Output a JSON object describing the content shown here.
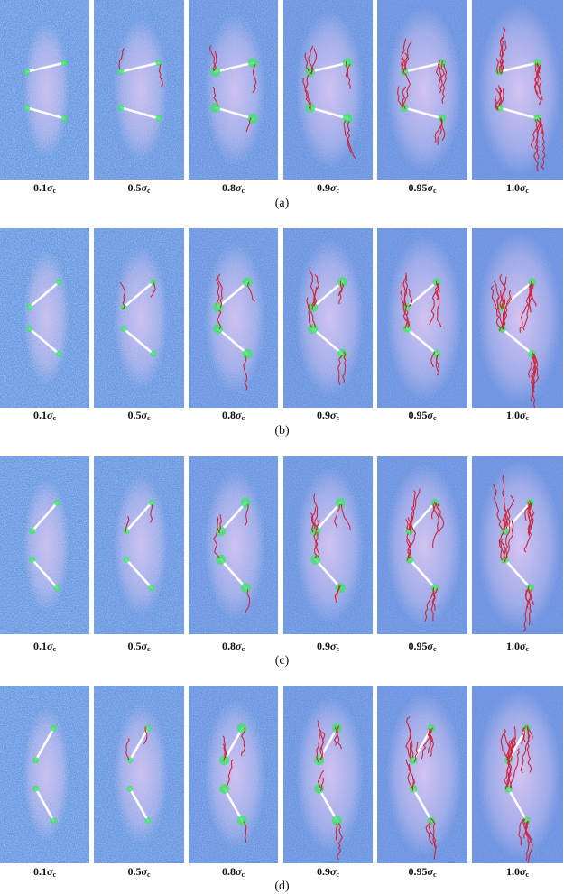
{
  "figure": {
    "stress_levels": [
      {
        "coef": "0.1",
        "sym": "σ",
        "sub": "c"
      },
      {
        "coef": "0.5",
        "sym": "σ",
        "sub": "c"
      },
      {
        "coef": "0.8",
        "sym": "σ",
        "sub": "c"
      },
      {
        "coef": "0.9",
        "sym": "σ",
        "sub": "c"
      },
      {
        "coef": "0.95",
        "sym": "σ",
        "sub": "c"
      },
      {
        "coef": "1.0",
        "sym": "σ",
        "sub": "c"
      }
    ],
    "rows": [
      {
        "caption": "(a)",
        "flaw_config": "parallel-offset",
        "labels": [
          "0.1σc",
          "0.5σc",
          "0.8σc",
          "0.9σc",
          "0.95σc",
          "1.0σc"
        ]
      },
      {
        "caption": "(b)",
        "flaw_config": "V-shaped-shallow",
        "labels": [
          "0.1σc",
          "0.5σc",
          "0.8σc",
          "0.9σc",
          "0.95σc",
          "1.0σc"
        ]
      },
      {
        "caption": "(c)",
        "flaw_config": "V-shaped-medium",
        "labels": [
          "0.1σc",
          "0.5σc",
          "0.8σc",
          "0.9σc",
          "0.95σc",
          "1.0σc"
        ]
      },
      {
        "caption": "(d)",
        "flaw_config": "V-shaped-steep",
        "labels": [
          "0.1σc",
          "0.5σc",
          "0.8σc",
          "0.9σc",
          "0.95σc",
          "1.0σc"
        ]
      }
    ],
    "colors": {
      "matrix_blue": "#6f8fe0",
      "matrix_cyan": "#4fc9e8",
      "stress_zone_lilac": "#d9c6f2",
      "flaw_white": "#ffffff",
      "crack_red": "#d0243a",
      "tip_green": "#3ee36a"
    }
  }
}
